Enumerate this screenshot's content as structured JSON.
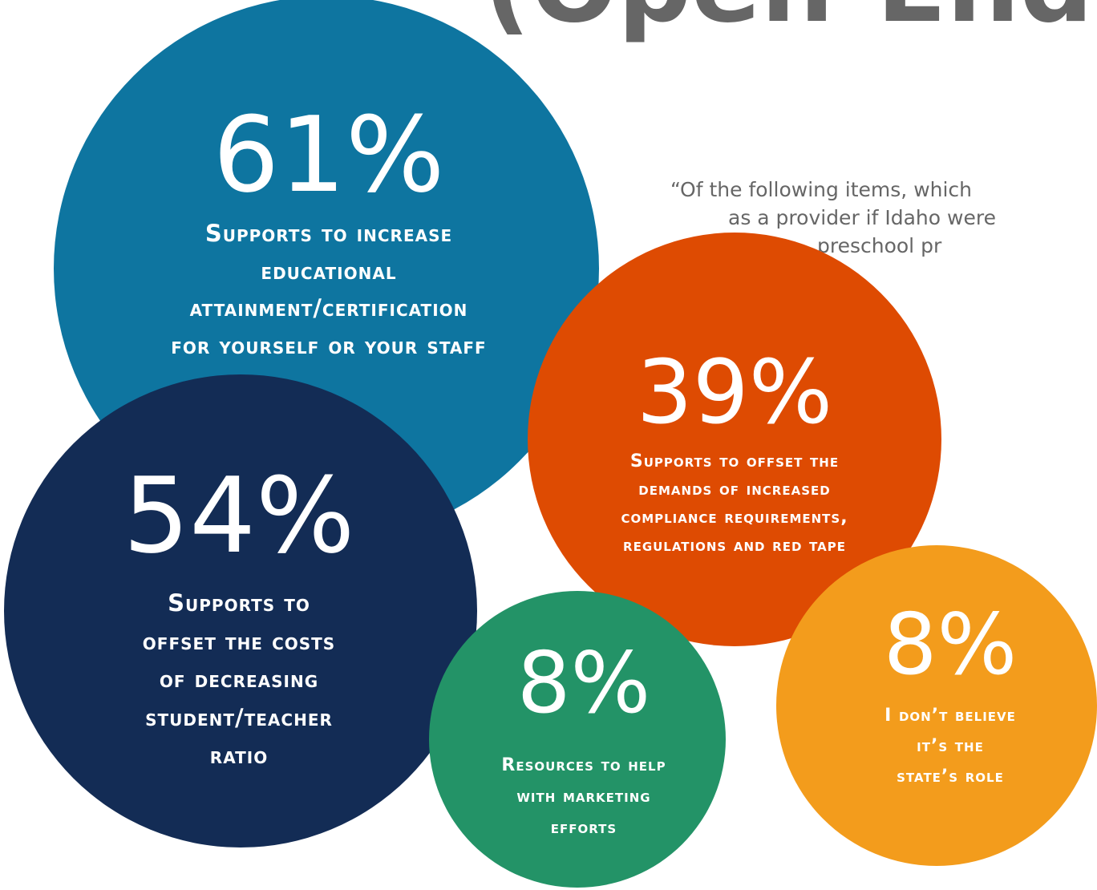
{
  "chart_data": {
    "type": "bubble",
    "title": "(Open-Ended)",
    "subtitle_lines": [
      "“Of the following items, which",
      "as a provider if Idaho were",
      "preschool pr"
    ],
    "labels": [
      [
        "Supports to increase",
        "educational",
        "attainment/certification",
        "for yourself or your staff"
      ],
      [
        "Supports to",
        "offset the costs",
        "of decreasing",
        "student/teacher",
        "ratio"
      ],
      [
        "Supports to offset the",
        "demands of increased",
        "compliance requirements,",
        "regulations and red tape"
      ],
      [
        "Resources to help",
        "with marketing",
        "efforts"
      ],
      [
        "I don’t believe",
        "it’s the",
        "state’s role"
      ]
    ],
    "values": [
      61,
      54,
      39,
      8,
      8
    ],
    "value_labels": [
      "61%",
      "54%",
      "39%",
      "8%",
      "8%"
    ],
    "colors": [
      "#0e75a0",
      "#132c55",
      "#de4b02",
      "#239367",
      "#f39c1c"
    ]
  }
}
